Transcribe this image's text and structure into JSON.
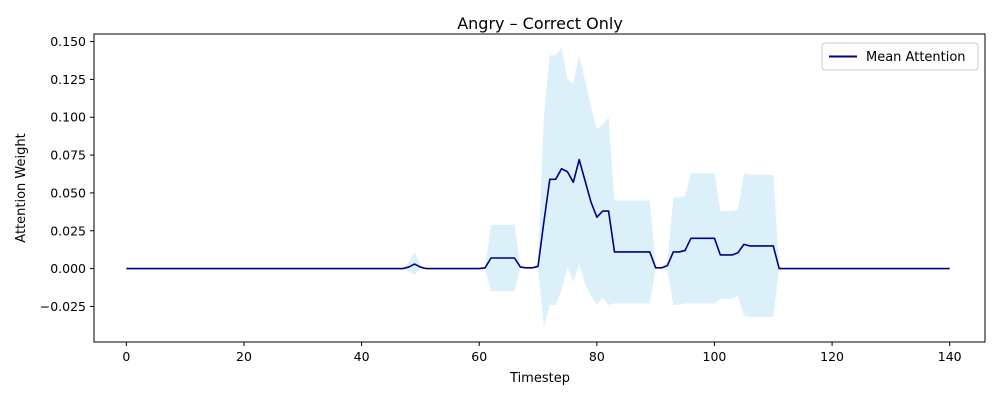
{
  "chart_data": {
    "type": "line",
    "title": "Angry – Correct Only",
    "xlabel": "Timestep",
    "ylabel": "Attention Weight",
    "xlim": [
      -5.5,
      146
    ],
    "ylim": [
      -0.0485,
      0.155
    ],
    "xticks": [
      0,
      20,
      40,
      60,
      80,
      100,
      120,
      140
    ],
    "yticks": [
      -0.025,
      0.0,
      0.025,
      0.05,
      0.075,
      0.1,
      0.125,
      0.15
    ],
    "xtick_labels": [
      "0",
      "20",
      "40",
      "60",
      "80",
      "100",
      "120",
      "140"
    ],
    "ytick_labels": [
      "−0.025",
      "0.000",
      "0.025",
      "0.050",
      "0.075",
      "0.100",
      "0.125",
      "0.150"
    ],
    "grid": false,
    "legend_position": "top-right",
    "colors": {
      "line": "#000080",
      "band": "#87ceeb"
    },
    "series": [
      {
        "name": "Mean Attention",
        "x": [
          0,
          47,
          48,
          49,
          50,
          51,
          60,
          61,
          62,
          63,
          64,
          65,
          66,
          67,
          68,
          69,
          70,
          71,
          72,
          73,
          74,
          75,
          76,
          77,
          78,
          79,
          80,
          81,
          82,
          83,
          84,
          85,
          86,
          87,
          88,
          89,
          90,
          91,
          92,
          93,
          94,
          95,
          96,
          97,
          98,
          99,
          100,
          101,
          102,
          103,
          104,
          105,
          106,
          107,
          108,
          109,
          110,
          111,
          140
        ],
        "y": [
          0,
          0,
          0.001,
          0.003,
          0.001,
          0,
          0,
          0.0005,
          0.007,
          0.007,
          0.007,
          0.007,
          0.007,
          0.001,
          0.0005,
          0.0005,
          0.0015,
          0.031,
          0.059,
          0.059,
          0.066,
          0.064,
          0.057,
          0.072,
          0.058,
          0.044,
          0.034,
          0.038,
          0.038,
          0.011,
          0.011,
          0.011,
          0.011,
          0.011,
          0.011,
          0.011,
          0.0005,
          0.0005,
          0.002,
          0.011,
          0.011,
          0.012,
          0.02,
          0.02,
          0.02,
          0.02,
          0.02,
          0.009,
          0.009,
          0.009,
          0.0105,
          0.016,
          0.015,
          0.015,
          0.015,
          0.015,
          0.015,
          0,
          0
        ],
        "band_lower": [
          0,
          0,
          -0.002,
          -0.004,
          0,
          0,
          0,
          0,
          -0.015,
          -0.015,
          -0.015,
          -0.015,
          -0.015,
          0,
          0,
          0,
          0,
          -0.039,
          -0.024,
          -0.024,
          -0.014,
          0.001,
          -0.009,
          0.003,
          -0.01,
          -0.018,
          -0.024,
          -0.019,
          -0.024,
          -0.023,
          -0.023,
          -0.023,
          -0.023,
          -0.023,
          -0.023,
          -0.023,
          0,
          0,
          -0.001,
          -0.024,
          -0.024,
          -0.023,
          -0.023,
          -0.023,
          -0.023,
          -0.023,
          -0.023,
          -0.02,
          -0.02,
          -0.02,
          -0.018,
          -0.031,
          -0.032,
          -0.032,
          -0.032,
          -0.032,
          -0.032,
          0,
          0
        ],
        "band_upper": [
          0,
          0,
          0.004,
          0.011,
          0.002,
          0,
          0,
          0.001,
          0.029,
          0.029,
          0.029,
          0.029,
          0.029,
          0.002,
          0.001,
          0.001,
          0.003,
          0.101,
          0.141,
          0.141,
          0.146,
          0.125,
          0.122,
          0.141,
          0.124,
          0.107,
          0.092,
          0.095,
          0.1,
          0.045,
          0.045,
          0.045,
          0.045,
          0.045,
          0.045,
          0.045,
          0.001,
          0.001,
          0.005,
          0.047,
          0.047,
          0.048,
          0.063,
          0.063,
          0.063,
          0.063,
          0.063,
          0.038,
          0.038,
          0.038,
          0.039,
          0.063,
          0.062,
          0.062,
          0.062,
          0.062,
          0.062,
          0,
          0
        ]
      }
    ]
  }
}
